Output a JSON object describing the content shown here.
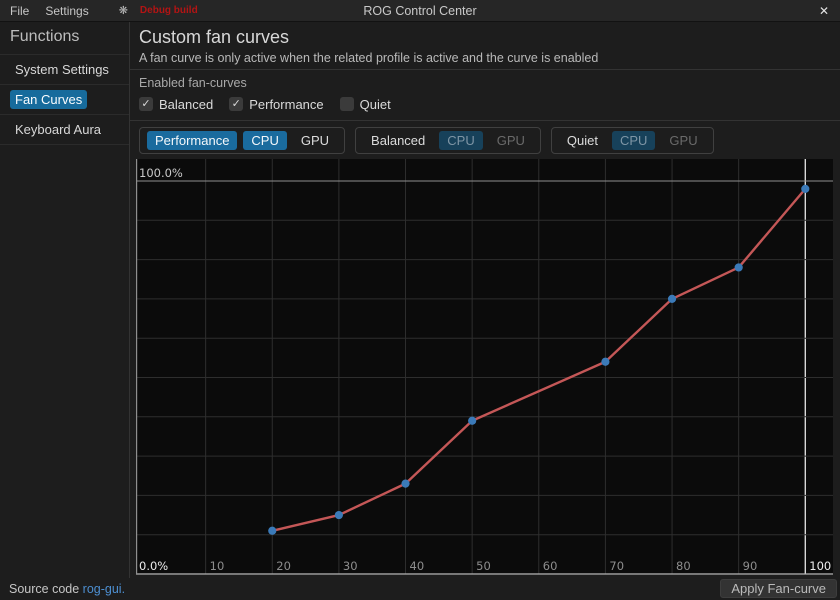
{
  "titlebar": {
    "menus": [
      {
        "label": "File"
      },
      {
        "label": "Settings"
      }
    ],
    "icons": {
      "app_indicator": "❋",
      "close": "✕"
    },
    "debug_badge": "Debug build",
    "title": "ROG Control Center"
  },
  "sidebar": {
    "header": "Functions",
    "items": [
      {
        "label": "System Settings",
        "active": false
      },
      {
        "label": "Fan Curves",
        "active": true
      },
      {
        "label": "Keyboard Aura",
        "active": false
      }
    ]
  },
  "main": {
    "title": "Custom fan curves",
    "subtitle": "A fan curve is only active when the related profile is active and the curve is enabled",
    "enabled_section_label": "Enabled fan-curves",
    "check_glyph": "✓",
    "checkboxes": [
      {
        "label": "Balanced",
        "checked": true
      },
      {
        "label": "Performance",
        "checked": true
      },
      {
        "label": "Quiet",
        "checked": false
      }
    ],
    "profile_groups": [
      {
        "name": "Performance",
        "name_state": "active",
        "tabs": [
          {
            "label": "CPU",
            "state": "active"
          },
          {
            "label": "GPU",
            "state": "normal"
          }
        ]
      },
      {
        "name": "Balanced",
        "name_state": "normal",
        "tabs": [
          {
            "label": "CPU",
            "state": "selected-dim"
          },
          {
            "label": "GPU",
            "state": "dim"
          }
        ]
      },
      {
        "name": "Quiet",
        "name_state": "normal",
        "tabs": [
          {
            "label": "CPU",
            "state": "selected-dim"
          },
          {
            "label": "GPU",
            "state": "dim"
          }
        ]
      }
    ]
  },
  "footer": {
    "source_text": "Source code",
    "source_link": "rog-gui.",
    "apply_button": "Apply Fan-curve"
  },
  "chart_data": {
    "type": "line",
    "series": [
      {
        "name": "Performance CPU fan curve",
        "x": [
          20,
          30,
          40,
          50,
          70,
          80,
          90,
          100
        ],
        "y": [
          11,
          15,
          23,
          39,
          54,
          70,
          78,
          98
        ]
      }
    ],
    "x_ticks": [
      10,
      20,
      30,
      40,
      50,
      60,
      70,
      80,
      90,
      100
    ],
    "y_gridline_step": 10,
    "y_axis_labels": {
      "top": "100.0%",
      "bottom": "0.0%"
    },
    "xlim": [
      0,
      104
    ],
    "ylim": [
      0,
      106
    ],
    "grid": true,
    "highlighted_x_gridline": 100,
    "highlighted_x_tick": 100,
    "legend": "none",
    "colors": {
      "line": "#c45757",
      "point": "#3b7ab8",
      "grid": "#2e2e2e",
      "axis": "#8f8f8f",
      "bottom_axis": "#b9b9b9",
      "highlight_line": "#d8d8d8",
      "tick_label": "#8d8d8d",
      "tick_label_highlight": "#f0f0f0",
      "y_label_top": "#c9c9c9",
      "y_label_bottom": "#ececec"
    }
  }
}
